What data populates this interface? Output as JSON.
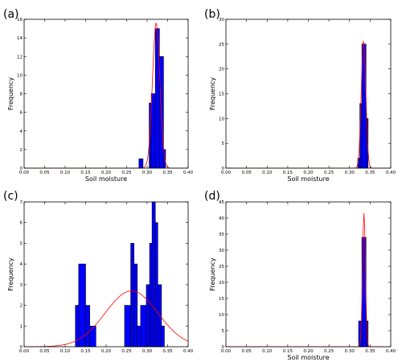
{
  "chart_data": [
    {
      "panel": "(a)",
      "type": "bar",
      "xlabel": "Soil moisture",
      "ylabel": "Frequency",
      "xlim": [
        0.0,
        0.4
      ],
      "ylim": [
        0,
        16
      ],
      "xticks": [
        "0.00",
        "0.05",
        "0.10",
        "0.15",
        "0.20",
        "0.25",
        "0.30",
        "0.35",
        "0.40"
      ],
      "yticks": [
        "0",
        "2",
        "4",
        "6",
        "8",
        "10",
        "12",
        "14",
        "16"
      ],
      "bar_color": "#0000ff",
      "bins": [
        {
          "x0": 0.28,
          "x1": 0.29,
          "value": 1
        },
        {
          "x0": 0.305,
          "x1": 0.31,
          "value": 7
        },
        {
          "x0": 0.31,
          "x1": 0.32,
          "value": 8
        },
        {
          "x0": 0.32,
          "x1": 0.33,
          "value": 15
        },
        {
          "x0": 0.33,
          "x1": 0.34,
          "value": 12
        },
        {
          "x0": 0.34,
          "x1": 0.345,
          "value": 2
        }
      ],
      "fit": {
        "color": "#ff0000",
        "mean": 0.322,
        "sd": 0.009,
        "peak": 15.6
      }
    },
    {
      "panel": "(b)",
      "type": "bar",
      "xlabel": "Soil moisture",
      "ylabel": "Frequency",
      "xlim": [
        0.0,
        0.4
      ],
      "ylim": [
        0,
        30
      ],
      "xticks": [
        "0.00",
        "0.05",
        "0.10",
        "0.15",
        "0.20",
        "0.25",
        "0.30",
        "0.35",
        "0.40"
      ],
      "yticks": [
        "0",
        "5",
        "10",
        "15",
        "20",
        "25",
        "30"
      ],
      "bar_color": "#0000ff",
      "bins": [
        {
          "x0": 0.32,
          "x1": 0.325,
          "value": 2
        },
        {
          "x0": 0.325,
          "x1": 0.33,
          "value": 13
        },
        {
          "x0": 0.33,
          "x1": 0.34,
          "value": 25
        },
        {
          "x0": 0.34,
          "x1": 0.345,
          "value": 10
        }
      ],
      "fit": {
        "color": "#ff0000",
        "mean": 0.334,
        "sd": 0.0055,
        "peak": 25.7
      }
    },
    {
      "panel": "(c)",
      "type": "bar",
      "xlabel": "",
      "ylabel": "Frequency",
      "xlim": [
        0.0,
        0.4
      ],
      "ylim": [
        0,
        7
      ],
      "xticks": [
        "0.00",
        "0.05",
        "0.10",
        "0.15",
        "0.20",
        "0.25",
        "0.30",
        "0.35",
        "0.40"
      ],
      "yticks": [
        "0",
        "1",
        "2",
        "3",
        "4",
        "5",
        "6",
        "7"
      ],
      "bar_color": "#0000ff",
      "bins": [
        {
          "x0": 0.125,
          "x1": 0.133,
          "value": 2
        },
        {
          "x0": 0.133,
          "x1": 0.15,
          "value": 4
        },
        {
          "x0": 0.15,
          "x1": 0.16,
          "value": 2
        },
        {
          "x0": 0.16,
          "x1": 0.175,
          "value": 1
        },
        {
          "x0": 0.245,
          "x1": 0.26,
          "value": 2
        },
        {
          "x0": 0.26,
          "x1": 0.268,
          "value": 5
        },
        {
          "x0": 0.268,
          "x1": 0.276,
          "value": 4
        },
        {
          "x0": 0.276,
          "x1": 0.284,
          "value": 1
        },
        {
          "x0": 0.284,
          "x1": 0.298,
          "value": 2
        },
        {
          "x0": 0.298,
          "x1": 0.306,
          "value": 3
        },
        {
          "x0": 0.306,
          "x1": 0.312,
          "value": 5
        },
        {
          "x0": 0.312,
          "x1": 0.32,
          "value": 7
        },
        {
          "x0": 0.32,
          "x1": 0.326,
          "value": 6
        },
        {
          "x0": 0.326,
          "x1": 0.335,
          "value": 3
        },
        {
          "x0": 0.335,
          "x1": 0.342,
          "value": 1
        }
      ],
      "fit": {
        "color": "#ff0000",
        "mean": 0.262,
        "sd": 0.064,
        "peak": 2.7
      }
    },
    {
      "panel": "(d)",
      "type": "bar",
      "xlabel": "Soil moisture",
      "ylabel": "Frequency",
      "xlim": [
        0.0,
        0.4
      ],
      "ylim": [
        0,
        45
      ],
      "xticks": [
        "0.00",
        "0.05",
        "0.10",
        "0.15",
        "0.20",
        "0.25",
        "0.30",
        "0.35",
        "0.40"
      ],
      "yticks": [
        "0",
        "5",
        "10",
        "15",
        "20",
        "25",
        "30",
        "35",
        "40",
        "45"
      ],
      "bar_color": "#0000ff",
      "bins": [
        {
          "x0": 0.322,
          "x1": 0.33,
          "value": 8
        },
        {
          "x0": 0.33,
          "x1": 0.34,
          "value": 34
        },
        {
          "x0": 0.34,
          "x1": 0.345,
          "value": 8
        }
      ],
      "fit": {
        "color": "#ff0000",
        "mean": 0.335,
        "sd": 0.0035,
        "peak": 41.5
      }
    }
  ]
}
